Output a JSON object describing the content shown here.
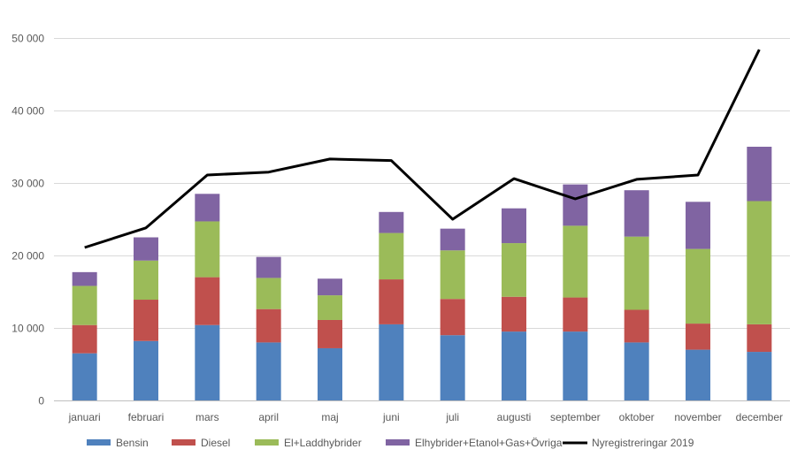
{
  "chart_data": {
    "type": "bar",
    "stacked": true,
    "categories": [
      "januari",
      "februari",
      "mars",
      "april",
      "maj",
      "juni",
      "juli",
      "augusti",
      "september",
      "oktober",
      "november",
      "december"
    ],
    "series": [
      {
        "name": "Bensin",
        "color": "#4f81bd",
        "values": [
          6500,
          8200,
          10400,
          8000,
          7200,
          10500,
          9000,
          9500,
          9500,
          8000,
          7000,
          6700
        ]
      },
      {
        "name": "Diesel",
        "color": "#c0504d",
        "values": [
          3900,
          5700,
          6600,
          4600,
          3900,
          6200,
          5000,
          4800,
          4700,
          4500,
          3600,
          3800
        ]
      },
      {
        "name": "El+Laddhybrider",
        "color": "#9bbb59",
        "values": [
          5400,
          5400,
          7700,
          4300,
          3400,
          6400,
          6700,
          7400,
          9900,
          10100,
          10300,
          17000
        ]
      },
      {
        "name": "Elhybrider+Etanol+Gas+Övriga",
        "color": "#8064a2",
        "values": [
          1900,
          3200,
          3800,
          2900,
          2300,
          2900,
          3000,
          4800,
          5700,
          6400,
          6500,
          7500
        ]
      }
    ],
    "line": {
      "name": "Nyregistreringar 2019",
      "color": "#000000",
      "values": [
        21100,
        23800,
        31100,
        31500,
        33300,
        33100,
        25000,
        30600,
        27800,
        30500,
        31100,
        48400
      ]
    },
    "ylim": [
      0,
      50000
    ],
    "yticks": [
      0,
      10000,
      20000,
      30000,
      40000,
      50000
    ],
    "ytick_labels": [
      "0",
      "10 000",
      "20 000",
      "30 000",
      "40 000",
      "50 000"
    ],
    "grid": true,
    "legend_position": "bottom"
  }
}
